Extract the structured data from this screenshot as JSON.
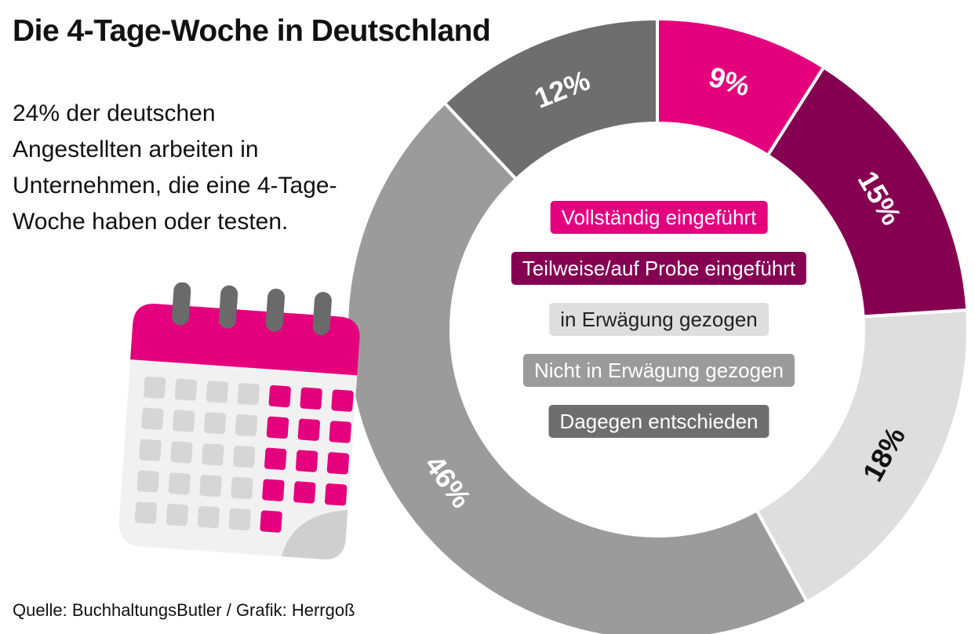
{
  "title": "Die 4-Tage-Woche in Deutschland",
  "subtitle": "24% der deutschen Angestellten arbeiten in Unternehmen, die eine 4-Tage-Woche haben oder testen.",
  "source": "Quelle: BuchhaltungsButler / Grafik: Herrgoß",
  "colors": {
    "magenta": "#e4007d",
    "dark_magenta": "#860052",
    "light_gray": "#dedede",
    "mid_gray": "#9b9b9b",
    "dark_gray": "#6f6e6f",
    "calendar_rings": "#6a6a6a",
    "calendar_cell": "#d6d6d6"
  },
  "chart_data": {
    "type": "pie",
    "variant": "donut",
    "title": "Die 4-Tage-Woche in Deutschland",
    "unit": "%",
    "slices": [
      {
        "label": "Vollständig eingeführt",
        "value": 9,
        "display": "9%",
        "color": "#e4007d",
        "legend_text_color": "#ffffff",
        "value_text_color": "#ffffff"
      },
      {
        "label": "Teilweise/auf Probe eingeführt",
        "value": 15,
        "display": "15%",
        "color": "#860052",
        "legend_text_color": "#ffffff",
        "value_text_color": "#ffffff"
      },
      {
        "label": "in Erwägung gezogen",
        "value": 18,
        "display": "18%",
        "color": "#dedede",
        "legend_text_color": "#222222",
        "value_text_color": "#111111"
      },
      {
        "label": "Nicht in Erwägung gezogen",
        "value": 46,
        "display": "46%",
        "color": "#9b9b9b",
        "legend_text_color": "#ffffff",
        "value_text_color": "#ffffff"
      },
      {
        "label": "Dagegen entschieden",
        "value": 12,
        "display": "12%",
        "color": "#6f6e6f",
        "legend_text_color": "#ffffff",
        "value_text_color": "#ffffff"
      }
    ],
    "start_angle": "12 o'clock",
    "direction": "clockwise",
    "legend_placement": "center of donut"
  },
  "calendar_icon": {
    "icon": "calendar-icon",
    "grid_rows": [
      [
        "gray",
        "gray",
        "gray",
        "gray",
        "pink",
        "pink",
        "pink"
      ],
      [
        "gray",
        "gray",
        "gray",
        "gray",
        "pink",
        "pink",
        "pink"
      ],
      [
        "gray",
        "gray",
        "gray",
        "gray",
        "pink",
        "pink",
        "pink"
      ],
      [
        "gray",
        "gray",
        "gray",
        "gray",
        "pink",
        "pink",
        "pink"
      ],
      [
        "gray",
        "gray",
        "gray",
        "gray",
        "pink"
      ]
    ]
  }
}
